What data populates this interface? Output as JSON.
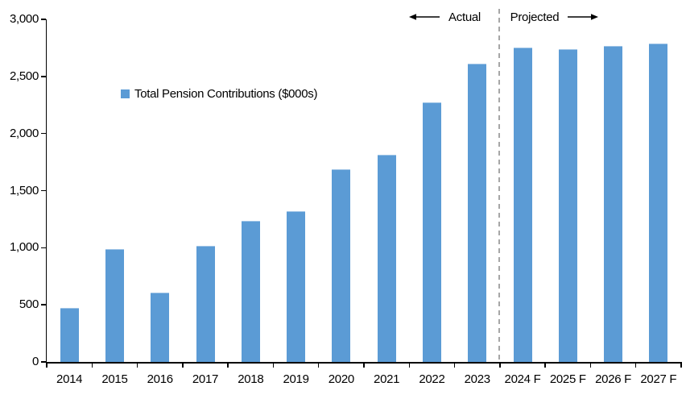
{
  "chart_data": {
    "type": "bar",
    "title": "",
    "series_name": "Total Pension Contributions ($000s)",
    "categories": [
      "2014",
      "2015",
      "2016",
      "2017",
      "2018",
      "2019",
      "2020",
      "2021",
      "2022",
      "2023",
      "2024 F",
      "2025 F",
      "2026 F",
      "2027 F"
    ],
    "values": [
      470,
      990,
      610,
      1020,
      1235,
      1320,
      1690,
      1815,
      2275,
      2610,
      2750,
      2740,
      2770,
      2790
    ],
    "xlabel": "",
    "ylabel": "",
    "ylim": [
      0,
      3000
    ],
    "ytick_interval": 500,
    "ytick_labels": [
      "0",
      "500",
      "1,000",
      "1,500",
      "2,000",
      "2,500",
      "3,000"
    ],
    "grid": false,
    "legend_position": "inside-upper-left",
    "annotations": {
      "actual_label": "Actual",
      "projected_label": "Projected",
      "divider_after_category": "2023",
      "divider_style": "dashed"
    },
    "colors": {
      "bar": "#5B9BD5",
      "bar_edge": "#9DC3E6",
      "divider": "#A6A6A6",
      "axis": "#000000",
      "text": "#000000"
    }
  },
  "legend": {
    "label": "Total Pension Contributions ($000s)"
  },
  "header": {
    "actual": "Actual",
    "projected": "Projected"
  }
}
